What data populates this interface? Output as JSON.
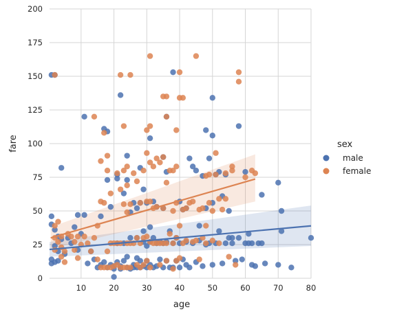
{
  "chart_data": {
    "type": "scatter",
    "xlabel": "age",
    "ylabel": "fare",
    "xlim": [
      0.4,
      80
    ],
    "ylim": [
      0,
      200
    ],
    "xticks": [
      10,
      20,
      30,
      40,
      50,
      60,
      70,
      80
    ],
    "yticks": [
      0,
      25,
      50,
      75,
      100,
      125,
      150,
      175,
      200
    ],
    "grid": true,
    "legend": {
      "title": "sex",
      "placement": "right"
    },
    "series": [
      {
        "name": "male",
        "color": "#4c72b0",
        "points": [
          [
            1,
            151
          ],
          [
            2,
            151
          ],
          [
            1,
            46
          ],
          [
            1,
            40
          ],
          [
            2,
            36
          ],
          [
            3,
            31
          ],
          [
            4,
            29
          ],
          [
            4,
            82
          ],
          [
            2,
            24
          ],
          [
            3,
            20
          ],
          [
            1,
            14
          ],
          [
            1,
            11
          ],
          [
            2,
            12
          ],
          [
            3,
            13
          ],
          [
            5,
            18
          ],
          [
            6,
            30
          ],
          [
            7,
            26
          ],
          [
            8,
            38
          ],
          [
            9,
            21
          ],
          [
            9,
            47
          ],
          [
            10,
            33
          ],
          [
            11,
            120
          ],
          [
            11,
            47
          ],
          [
            12,
            11
          ],
          [
            13,
            20
          ],
          [
            14,
            14
          ],
          [
            15,
            8
          ],
          [
            16,
            10
          ],
          [
            16,
            46
          ],
          [
            17,
            111
          ],
          [
            17,
            12
          ],
          [
            18,
            109
          ],
          [
            18,
            73
          ],
          [
            18,
            8
          ],
          [
            19,
            53
          ],
          [
            19,
            10
          ],
          [
            20,
            9
          ],
          [
            20,
            7
          ],
          [
            20,
            1
          ],
          [
            21,
            77
          ],
          [
            21,
            74
          ],
          [
            21,
            12
          ],
          [
            21,
            26
          ],
          [
            22,
            136
          ],
          [
            22,
            7
          ],
          [
            22,
            9
          ],
          [
            23,
            13
          ],
          [
            23,
            63
          ],
          [
            23,
            26
          ],
          [
            24,
            91
          ],
          [
            24,
            73
          ],
          [
            24,
            8
          ],
          [
            24,
            16
          ],
          [
            25,
            30
          ],
          [
            25,
            7
          ],
          [
            25,
            49
          ],
          [
            26,
            56
          ],
          [
            26,
            8
          ],
          [
            26,
            10
          ],
          [
            27,
            30
          ],
          [
            27,
            8
          ],
          [
            27,
            52
          ],
          [
            27,
            15
          ],
          [
            28,
            56
          ],
          [
            28,
            13
          ],
          [
            28,
            8
          ],
          [
            28,
            82
          ],
          [
            29,
            66
          ],
          [
            29,
            9
          ],
          [
            29,
            27
          ],
          [
            29,
            35
          ],
          [
            30,
            13
          ],
          [
            30,
            8
          ],
          [
            30,
            56
          ],
          [
            30,
            24
          ],
          [
            31,
            104
          ],
          [
            31,
            10
          ],
          [
            31,
            27
          ],
          [
            31,
            38
          ],
          [
            32,
            8
          ],
          [
            32,
            30
          ],
          [
            32,
            57
          ],
          [
            33,
            9
          ],
          [
            33,
            26
          ],
          [
            33,
            53
          ],
          [
            34,
            14
          ],
          [
            34,
            27
          ],
          [
            35,
            52
          ],
          [
            35,
            8
          ],
          [
            35,
            26
          ],
          [
            35,
            90
          ],
          [
            36,
            120
          ],
          [
            36,
            13
          ],
          [
            36,
            79
          ],
          [
            36,
            27
          ],
          [
            37,
            35
          ],
          [
            37,
            8
          ],
          [
            38,
            153
          ],
          [
            38,
            26
          ],
          [
            38,
            8
          ],
          [
            39,
            30
          ],
          [
            39,
            13
          ],
          [
            40,
            26
          ],
          [
            40,
            8
          ],
          [
            40,
            57
          ],
          [
            41,
            51
          ],
          [
            41,
            14
          ],
          [
            42,
            10
          ],
          [
            42,
            27
          ],
          [
            42,
            52
          ],
          [
            43,
            89
          ],
          [
            43,
            8
          ],
          [
            44,
            83
          ],
          [
            44,
            26
          ],
          [
            45,
            80
          ],
          [
            45,
            12
          ],
          [
            46,
            28
          ],
          [
            46,
            39
          ],
          [
            47,
            76
          ],
          [
            47,
            9
          ],
          [
            48,
            52
          ],
          [
            48,
            25
          ],
          [
            48,
            110
          ],
          [
            49,
            89
          ],
          [
            49,
            26
          ],
          [
            50,
            134
          ],
          [
            50,
            106
          ],
          [
            50,
            10
          ],
          [
            50,
            56
          ],
          [
            51,
            77
          ],
          [
            51,
            26
          ],
          [
            52,
            79
          ],
          [
            52,
            35
          ],
          [
            53,
            61
          ],
          [
            53,
            11
          ],
          [
            54,
            77
          ],
          [
            54,
            26
          ],
          [
            55,
            30
          ],
          [
            55,
            50
          ],
          [
            56,
            30
          ],
          [
            56,
            26
          ],
          [
            57,
            13
          ],
          [
            58,
            113
          ],
          [
            58,
            30
          ],
          [
            59,
            14
          ],
          [
            60,
            79
          ],
          [
            60,
            26
          ],
          [
            61,
            33
          ],
          [
            61,
            26
          ],
          [
            62,
            26
          ],
          [
            62,
            10
          ],
          [
            63,
            9
          ],
          [
            64,
            26
          ],
          [
            65,
            62
          ],
          [
            65,
            26
          ],
          [
            66,
            11
          ],
          [
            70,
            71
          ],
          [
            70,
            10
          ],
          [
            71,
            50
          ],
          [
            71,
            35
          ],
          [
            74,
            8
          ],
          [
            80,
            30
          ]
        ]
      },
      {
        "name": "female",
        "color": "#dd8452",
        "points": [
          [
            2,
            151
          ],
          [
            2,
            30
          ],
          [
            2,
            39
          ],
          [
            2,
            21
          ],
          [
            3,
            42
          ],
          [
            3,
            27
          ],
          [
            4,
            31
          ],
          [
            4,
            16
          ],
          [
            4,
            23
          ],
          [
            5,
            20
          ],
          [
            5,
            12
          ],
          [
            6,
            33
          ],
          [
            7,
            31
          ],
          [
            8,
            27
          ],
          [
            8,
            21
          ],
          [
            9,
            31
          ],
          [
            9,
            15
          ],
          [
            10,
            25
          ],
          [
            11,
            31
          ],
          [
            12,
            26
          ],
          [
            13,
            20
          ],
          [
            14,
            120
          ],
          [
            14,
            30
          ],
          [
            15,
            14
          ],
          [
            15,
            39
          ],
          [
            16,
            87
          ],
          [
            16,
            57
          ],
          [
            16,
            8
          ],
          [
            17,
            56
          ],
          [
            17,
            8
          ],
          [
            17,
            108
          ],
          [
            18,
            91
          ],
          [
            18,
            80
          ],
          [
            18,
            20
          ],
          [
            18,
            8
          ],
          [
            19,
            63
          ],
          [
            19,
            26
          ],
          [
            19,
            8
          ],
          [
            20,
            26
          ],
          [
            20,
            9
          ],
          [
            21,
            78
          ],
          [
            21,
            26
          ],
          [
            21,
            10
          ],
          [
            22,
            151
          ],
          [
            22,
            66
          ],
          [
            22,
            26
          ],
          [
            22,
            8
          ],
          [
            23,
            113
          ],
          [
            23,
            80
          ],
          [
            23,
            55
          ],
          [
            23,
            8
          ],
          [
            24,
            83
          ],
          [
            24,
            69
          ],
          [
            24,
            26
          ],
          [
            24,
            8
          ],
          [
            24,
            49
          ],
          [
            25,
            151
          ],
          [
            25,
            26
          ],
          [
            25,
            8
          ],
          [
            25,
            55
          ],
          [
            26,
            78
          ],
          [
            26,
            26
          ],
          [
            27,
            72
          ],
          [
            27,
            10
          ],
          [
            27,
            30
          ],
          [
            28,
            56
          ],
          [
            28,
            26
          ],
          [
            28,
            8
          ],
          [
            29,
            80
          ],
          [
            29,
            10
          ],
          [
            29,
            30
          ],
          [
            30,
            110
          ],
          [
            30,
            93
          ],
          [
            30,
            57
          ],
          [
            30,
            31
          ],
          [
            30,
            13
          ],
          [
            31,
            165
          ],
          [
            31,
            113
          ],
          [
            31,
            86
          ],
          [
            31,
            57
          ],
          [
            31,
            27
          ],
          [
            31,
            8
          ],
          [
            32,
            83
          ],
          [
            32,
            26
          ],
          [
            32,
            52
          ],
          [
            33,
            89
          ],
          [
            33,
            26
          ],
          [
            33,
            53
          ],
          [
            34,
            86
          ],
          [
            34,
            10
          ],
          [
            34,
            26
          ],
          [
            35,
            135
          ],
          [
            35,
            90
          ],
          [
            35,
            52
          ],
          [
            35,
            26
          ],
          [
            36,
            135
          ],
          [
            36,
            120
          ],
          [
            36,
            71
          ],
          [
            36,
            26
          ],
          [
            36,
            13
          ],
          [
            37,
            80
          ],
          [
            37,
            33
          ],
          [
            38,
            80
          ],
          [
            38,
            50
          ],
          [
            38,
            26
          ],
          [
            38,
            7
          ],
          [
            39,
            110
          ],
          [
            39,
            83
          ],
          [
            39,
            56
          ],
          [
            39,
            30
          ],
          [
            39,
            13
          ],
          [
            40,
            153
          ],
          [
            40,
            134
          ],
          [
            40,
            39
          ],
          [
            40,
            15
          ],
          [
            41,
            134
          ],
          [
            41,
            51
          ],
          [
            41,
            26
          ],
          [
            42,
            52
          ],
          [
            42,
            28
          ],
          [
            43,
            56
          ],
          [
            44,
            57
          ],
          [
            44,
            27
          ],
          [
            45,
            165
          ],
          [
            45,
            28
          ],
          [
            46,
            51
          ],
          [
            46,
            14
          ],
          [
            47,
            52
          ],
          [
            47,
            30
          ],
          [
            48,
            76
          ],
          [
            48,
            39
          ],
          [
            48,
            26
          ],
          [
            49,
            56
          ],
          [
            49,
            77
          ],
          [
            50,
            28
          ],
          [
            50,
            50
          ],
          [
            51,
            93
          ],
          [
            51,
            77
          ],
          [
            52,
            59
          ],
          [
            52,
            26
          ],
          [
            53,
            51
          ],
          [
            54,
            78
          ],
          [
            54,
            59
          ],
          [
            55,
            16
          ],
          [
            56,
            83
          ],
          [
            56,
            80
          ],
          [
            57,
            10
          ],
          [
            58,
            153
          ],
          [
            58,
            146
          ],
          [
            60,
            75
          ],
          [
            62,
            80
          ],
          [
            63,
            78
          ]
        ]
      }
    ],
    "regression": [
      {
        "name": "male",
        "x": [
          0.4,
          80
        ],
        "y": [
          21.4,
          38.9
        ],
        "ci_lower": [
          16,
          24
        ],
        "ci_upper": [
          27,
          54
        ]
      },
      {
        "name": "female",
        "x": [
          0.75,
          63
        ],
        "y": [
          30.0,
          73.7
        ],
        "ci_lower": [
          22,
          57
        ],
        "ci_upper": [
          38,
          92
        ]
      }
    ]
  }
}
